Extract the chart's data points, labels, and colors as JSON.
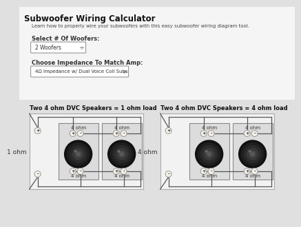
{
  "bg_color": "#e0e0e0",
  "panel_color": "#f2f2f2",
  "title": "Subwoofer Wiring Calculator",
  "subtitle": "Learn how to properly wire your subwoofers with this easy subwoofer wiring diagram tool.",
  "label_woofers": "Select # Of Woofers:",
  "dropdown_woofers": "2 Woofers",
  "dropdown_arrow": "÷",
  "label_impedance": "Choose Impedance To Match Amp:",
  "dropdown_impedance": "4Ω Impedance w/ Dual Voice Coil Subs",
  "diagram1_title": "Two 4 ohm DVC Speakers = 1 ohm load",
  "diagram2_title": "Two 4 ohm DVC Speakers = 4 ohm load",
  "diagram1_side_label_top": "+",
  "diagram1_side_label_bot": "-",
  "diagram2_side_label_top": "+",
  "diagram2_side_label_bot": "-",
  "diagram1_impedance": "1 ohm",
  "diagram2_impedance": "4 ohm",
  "wire_color": "#555555",
  "terminal_color": "#f5f0e8",
  "box_color": "#dcdcdc",
  "sub_border": "#888888"
}
